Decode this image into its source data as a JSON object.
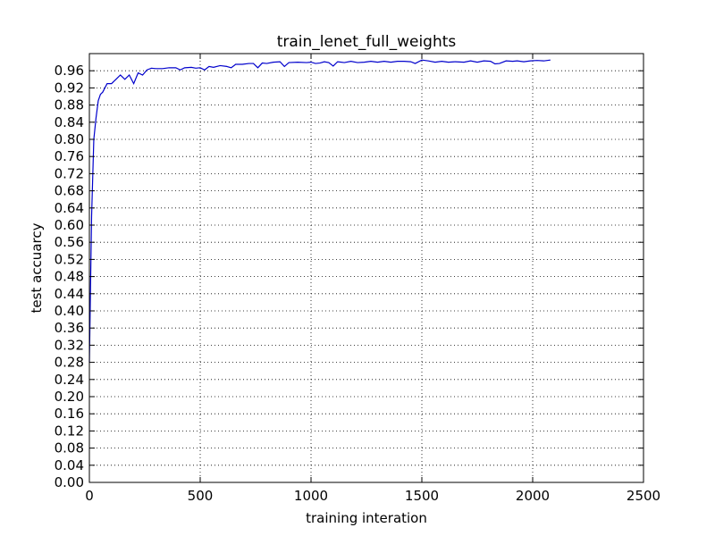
{
  "chart_data": {
    "type": "line",
    "title": "train_lenet_full_weights",
    "xlabel": "training interation",
    "ylabel": "test accuarcy",
    "xlim": [
      0,
      2500
    ],
    "ylim": [
      0,
      1.0
    ],
    "xticks": [
      0,
      500,
      1000,
      1500,
      2000,
      2500
    ],
    "xtick_labels": [
      "0",
      "500",
      "1000",
      "1500",
      "2000",
      "2500"
    ],
    "yticks": [
      0,
      0.04,
      0.08,
      0.12,
      0.16,
      0.2,
      0.24,
      0.28,
      0.32,
      0.36,
      0.4,
      0.44,
      0.48,
      0.52,
      0.56,
      0.6,
      0.64,
      0.68,
      0.72,
      0.76,
      0.8,
      0.84,
      0.88,
      0.92,
      0.96
    ],
    "ytick_labels": [
      "0.00",
      "0.04",
      "0.08",
      "0.12",
      "0.16",
      "0.20",
      "0.24",
      "0.28",
      "0.32",
      "0.36",
      "0.40",
      "0.44",
      "0.48",
      "0.52",
      "0.56",
      "0.60",
      "0.64",
      "0.68",
      "0.72",
      "0.76",
      "0.80",
      "0.84",
      "0.88",
      "0.92",
      "0.96"
    ],
    "grid": true,
    "series": [
      {
        "color": "#0000cc",
        "x": [
          0,
          10,
          20,
          30,
          40,
          50,
          60,
          80,
          100,
          120,
          140,
          160,
          180,
          200,
          220,
          240,
          260,
          280,
          300,
          330,
          360,
          390,
          410,
          430,
          460,
          480,
          500,
          520,
          540,
          560,
          590,
          620,
          640,
          660,
          690,
          720,
          740,
          760,
          780,
          800,
          830,
          860,
          880,
          900,
          940,
          980,
          1000,
          1020,
          1040,
          1060,
          1080,
          1100,
          1120,
          1150,
          1180,
          1210,
          1240,
          1270,
          1300,
          1330,
          1360,
          1390,
          1420,
          1450,
          1470,
          1500,
          1530,
          1560,
          1590,
          1620,
          1650,
          1690,
          1720,
          1750,
          1780,
          1810,
          1830,
          1850,
          1880,
          1910,
          1930,
          1960,
          1990,
          2020,
          2050,
          2080
        ],
        "y": [
          0.28,
          0.62,
          0.8,
          0.85,
          0.89,
          0.905,
          0.91,
          0.93,
          0.93,
          0.94,
          0.95,
          0.94,
          0.95,
          0.93,
          0.955,
          0.95,
          0.962,
          0.966,
          0.965,
          0.965,
          0.967,
          0.967,
          0.962,
          0.967,
          0.968,
          0.966,
          0.967,
          0.962,
          0.97,
          0.968,
          0.972,
          0.97,
          0.967,
          0.975,
          0.975,
          0.977,
          0.977,
          0.967,
          0.978,
          0.977,
          0.98,
          0.981,
          0.97,
          0.979,
          0.98,
          0.979,
          0.98,
          0.977,
          0.978,
          0.981,
          0.979,
          0.971,
          0.981,
          0.979,
          0.982,
          0.979,
          0.98,
          0.982,
          0.98,
          0.982,
          0.98,
          0.982,
          0.982,
          0.981,
          0.977,
          0.985,
          0.983,
          0.98,
          0.982,
          0.98,
          0.981,
          0.98,
          0.983,
          0.98,
          0.983,
          0.982,
          0.976,
          0.977,
          0.983,
          0.982,
          0.983,
          0.981,
          0.983,
          0.984,
          0.983,
          0.985
        ]
      }
    ]
  }
}
